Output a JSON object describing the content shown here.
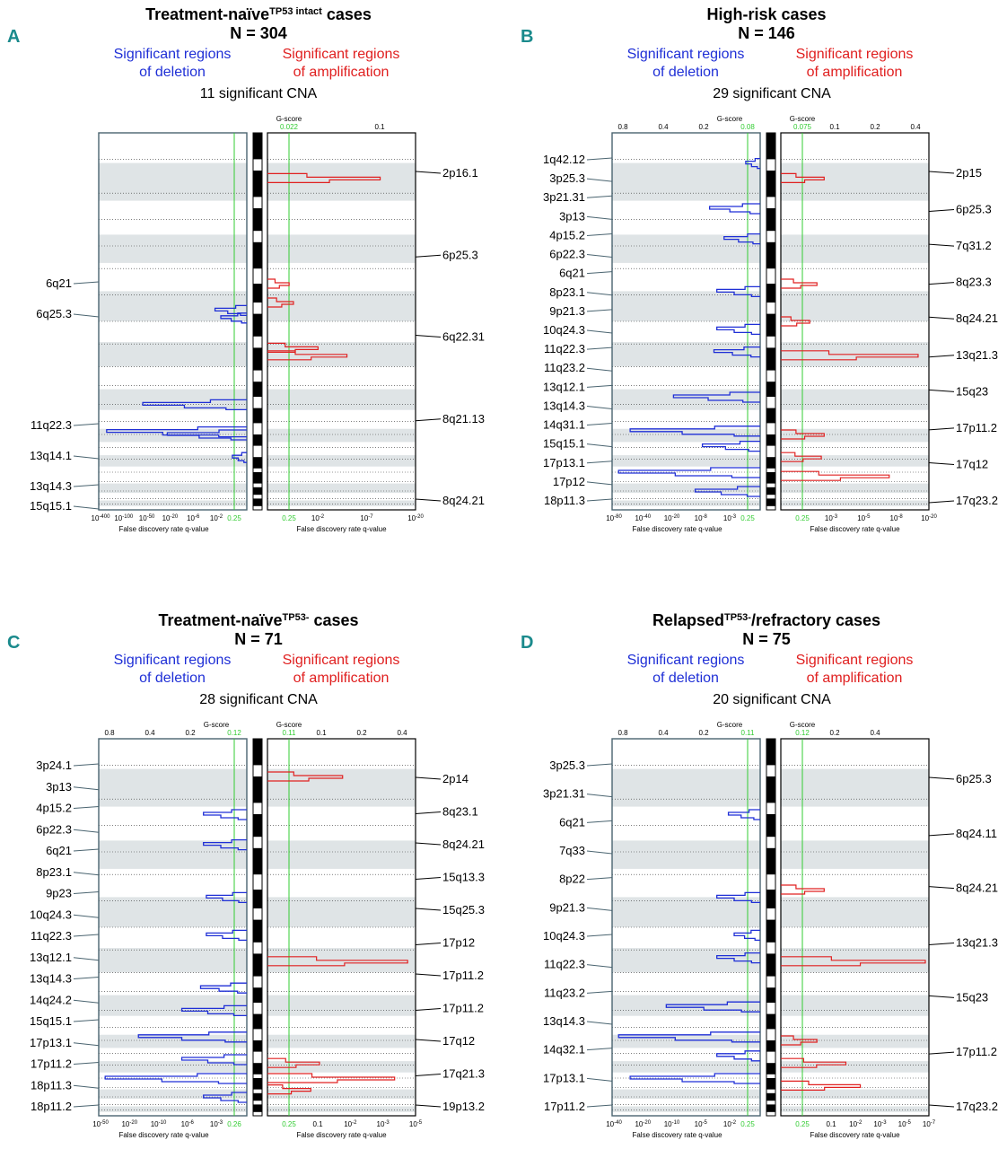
{
  "figure": {
    "colors": {
      "deletion": "#1f2fd6",
      "amplification": "#e02020",
      "threshold": "#33cc33",
      "panel_letter": "#1a8a8c",
      "band": "#dfe4e6"
    },
    "legend": {
      "del_line1": "Significant regions",
      "del_line2": "of deletion",
      "amp_line1": "Significant regions",
      "amp_line2": "of amplification"
    },
    "axis_labels": {
      "gscore": "G-score",
      "qvalue": "False discovery rate q-value"
    }
  },
  "chart_data": [
    {
      "type": "bar",
      "panel": "A",
      "title_main": "Treatment-naïve",
      "title_sup": "TP53 intact",
      "title_tail": " cases",
      "n_label": "N = 304",
      "cna_label": "11 significant CNA",
      "del_gscore_ticks": [],
      "del_gscore_threshold": "",
      "amp_gscore_ticks": [
        "0.1"
      ],
      "amp_gscore_threshold": "0.022",
      "del_q_ticks": [
        "10-400",
        "10-100",
        "10-50",
        "10-20",
        "10-6",
        "10-2"
      ],
      "del_q_threshold": "0.25",
      "amp_q_ticks": [
        "10-2",
        "10-7",
        "10-20"
      ],
      "amp_q_threshold": "0.25",
      "del_labels": [
        "6q21",
        "6q25.3",
        "11q22.3",
        "13q14.1",
        "13q14.3",
        "15q15.1"
      ],
      "amp_labels": [
        "2p16.1",
        "6p25.3",
        "6q22.31",
        "8q21.13",
        "8q24.21"
      ],
      "deletions": [
        {
          "region": "6q21",
          "pos": 0.47,
          "strength": 0.22
        },
        {
          "region": "6q25.3",
          "pos": 0.49,
          "strength": 0.18
        },
        {
          "region": "11q22.3",
          "pos": 0.72,
          "strength": 0.72
        },
        {
          "region": "13q14.1",
          "pos": 0.792,
          "strength": 0.97
        },
        {
          "region": "13q14.3",
          "pos": 0.8,
          "strength": 0.55
        },
        {
          "region": "15q15.1",
          "pos": 0.86,
          "strength": 0.1
        }
      ],
      "amplifications": [
        {
          "region": "2p16.1",
          "pos": 0.12,
          "strength": 0.78
        },
        {
          "region": "6p25.3",
          "pos": 0.4,
          "strength": 0.15
        },
        {
          "region": "6q22.31",
          "pos": 0.45,
          "strength": 0.18
        },
        {
          "region": "8q21.13",
          "pos": 0.57,
          "strength": 0.35
        },
        {
          "region": "8q24.21",
          "pos": 0.59,
          "strength": 0.55
        }
      ]
    },
    {
      "type": "bar",
      "panel": "B",
      "title_main": "High-risk cases",
      "title_sup": "",
      "title_tail": "",
      "n_label": "N = 146",
      "cna_label": "29 significant CNA",
      "del_gscore_ticks": [
        "0.8",
        "0.4",
        "0.2"
      ],
      "del_gscore_threshold": "0.08",
      "amp_gscore_ticks": [
        "0.1",
        "0.2",
        "0.4"
      ],
      "amp_gscore_threshold": "0.075",
      "del_q_ticks": [
        "10-80",
        "10-40",
        "10-20",
        "10-8",
        "10-3"
      ],
      "del_q_threshold": "0.25",
      "amp_q_ticks": [
        "10-3",
        "10-5",
        "10-8",
        "10-20"
      ],
      "amp_q_threshold": "0.25",
      "del_labels": [
        "1q42.12",
        "3p25.3",
        "3p21.31",
        "3p13",
        "4p15.2",
        "6p22.3",
        "6q21",
        "8p23.1",
        "9p21.3",
        "10q24.3",
        "11q22.3",
        "11q23.2",
        "13q12.1",
        "13q14.3",
        "14q31.1",
        "15q15.1",
        "17p13.1",
        "17p12",
        "18p11.3"
      ],
      "amp_labels": [
        "2p15",
        "6p25.3",
        "7q31.2",
        "8q23.3",
        "8q24.21",
        "13q21.3",
        "15q23",
        "17p11.2",
        "17q12",
        "17q23.2"
      ],
      "deletions": [
        {
          "region": "1q42.12",
          "pos": 0.08,
          "strength": 0.1
        },
        {
          "region": "3p21.31",
          "pos": 0.2,
          "strength": 0.35
        },
        {
          "region": "4p15.2",
          "pos": 0.28,
          "strength": 0.25
        },
        {
          "region": "6q21",
          "pos": 0.42,
          "strength": 0.3
        },
        {
          "region": "8p23.1",
          "pos": 0.52,
          "strength": 0.3
        },
        {
          "region": "9p21.3",
          "pos": 0.58,
          "strength": 0.32
        },
        {
          "region": "11q23.2",
          "pos": 0.7,
          "strength": 0.6
        },
        {
          "region": "13q14.3",
          "pos": 0.79,
          "strength": 0.9
        },
        {
          "region": "14q31.1",
          "pos": 0.83,
          "strength": 0.4
        },
        {
          "region": "17p13.1",
          "pos": 0.9,
          "strength": 0.98
        },
        {
          "region": "18p11.3",
          "pos": 0.95,
          "strength": 0.45
        }
      ],
      "amplifications": [
        {
          "region": "2p15",
          "pos": 0.12,
          "strength": 0.3
        },
        {
          "region": "6p25.3",
          "pos": 0.4,
          "strength": 0.25
        },
        {
          "region": "7q31.2",
          "pos": 0.5,
          "strength": 0.2
        },
        {
          "region": "8q24.21",
          "pos": 0.59,
          "strength": 0.95
        },
        {
          "region": "13q21.3",
          "pos": 0.8,
          "strength": 0.3
        },
        {
          "region": "15q23",
          "pos": 0.86,
          "strength": 0.28
        },
        {
          "region": "17q12",
          "pos": 0.91,
          "strength": 0.75
        }
      ]
    },
    {
      "type": "bar",
      "panel": "C",
      "title_main": "Treatment-naïve",
      "title_sup": "TP53-",
      "title_tail": " cases",
      "n_label": "N = 71",
      "cna_label": "28 significant CNA",
      "del_gscore_ticks": [
        "0.8",
        "0.4",
        "0.2"
      ],
      "del_gscore_threshold": "0.12",
      "amp_gscore_ticks": [
        "0.1",
        "0.2",
        "0.4"
      ],
      "amp_gscore_threshold": "0.11",
      "del_q_ticks": [
        "10-50",
        "10-20",
        "10-10",
        "10-6",
        "10-3"
      ],
      "del_q_threshold": "0.26",
      "amp_q_ticks": [
        "0.1",
        "10-2",
        "10-3",
        "10-5"
      ],
      "amp_q_threshold": "0.25",
      "del_labels": [
        "3p24.1",
        "3p13",
        "4p15.2",
        "6p22.3",
        "6q21",
        "8p23.1",
        "9p23",
        "10q24.3",
        "11q22.3",
        "13q12.1",
        "13q14.3",
        "14q24.2",
        "15q15.1",
        "17p13.1",
        "17p11.2",
        "18p11.3",
        "18p11.2"
      ],
      "amp_labels": [
        "2p14",
        "8q23.1",
        "8q24.21",
        "15q13.3",
        "15q25.3",
        "17p12",
        "17p11.2",
        "17p11.2",
        "17q12",
        "17q21.3",
        "19p13.2"
      ],
      "deletions": [
        {
          "region": "3p24.1",
          "pos": 0.2,
          "strength": 0.3
        },
        {
          "region": "4p15.2",
          "pos": 0.28,
          "strength": 0.3
        },
        {
          "region": "6q21",
          "pos": 0.42,
          "strength": 0.28
        },
        {
          "region": "8p23.1",
          "pos": 0.52,
          "strength": 0.28
        },
        {
          "region": "10q24.3",
          "pos": 0.66,
          "strength": 0.32
        },
        {
          "region": "11q22.3",
          "pos": 0.72,
          "strength": 0.45
        },
        {
          "region": "13q14.3",
          "pos": 0.79,
          "strength": 0.75
        },
        {
          "region": "15q15.1",
          "pos": 0.85,
          "strength": 0.45
        },
        {
          "region": "17p13.1",
          "pos": 0.9,
          "strength": 0.98
        },
        {
          "region": "18p11.2",
          "pos": 0.95,
          "strength": 0.3
        }
      ],
      "amplifications": [
        {
          "region": "2p14",
          "pos": 0.1,
          "strength": 0.52
        },
        {
          "region": "8q24.21",
          "pos": 0.59,
          "strength": 0.97
        },
        {
          "region": "15q25.3",
          "pos": 0.86,
          "strength": 0.36
        },
        {
          "region": "17p11.2",
          "pos": 0.9,
          "strength": 0.88
        },
        {
          "region": "17q21.3",
          "pos": 0.93,
          "strength": 0.3
        }
      ]
    },
    {
      "type": "bar",
      "panel": "D",
      "title_main": "Relapsed",
      "title_sup": "TP53-",
      "title_tail": "/refractory cases",
      "n_label": "N = 75",
      "cna_label": "20 significant CNA",
      "del_gscore_ticks": [
        "0.8",
        "0.4",
        "0.2"
      ],
      "del_gscore_threshold": "0.11",
      "amp_gscore_ticks": [
        "0.2",
        "0.4"
      ],
      "amp_gscore_threshold": "0.12",
      "del_q_ticks": [
        "10-40",
        "10-20",
        "10-10",
        "10-5",
        "10-2"
      ],
      "del_q_threshold": "0.25",
      "amp_q_ticks": [
        "0.1",
        "10-2",
        "10-3",
        "10-5",
        "10-7"
      ],
      "amp_q_threshold": "0.25",
      "del_labels": [
        "3p25.3",
        "3p21.31",
        "6q21",
        "7q33",
        "8p22",
        "9p21.3",
        "10q24.3",
        "11q22.3",
        "11q23.2",
        "13q14.3",
        "14q32.1",
        "17p13.1",
        "17p11.2"
      ],
      "amp_labels": [
        "6p25.3",
        "8q24.11",
        "8q24.21",
        "13q21.3",
        "15q23",
        "17p11.2",
        "17q23.2"
      ],
      "deletions": [
        {
          "region": "3p21.31",
          "pos": 0.2,
          "strength": 0.22
        },
        {
          "region": "6q21",
          "pos": 0.42,
          "strength": 0.3
        },
        {
          "region": "8p22",
          "pos": 0.52,
          "strength": 0.18
        },
        {
          "region": "9p21.3",
          "pos": 0.58,
          "strength": 0.3
        },
        {
          "region": "11q23.2",
          "pos": 0.71,
          "strength": 0.65
        },
        {
          "region": "13q14.3",
          "pos": 0.79,
          "strength": 0.98
        },
        {
          "region": "14q32.1",
          "pos": 0.84,
          "strength": 0.3
        },
        {
          "region": "17p13.1",
          "pos": 0.9,
          "strength": 0.9
        }
      ],
      "amplifications": [
        {
          "region": "6p25.3",
          "pos": 0.4,
          "strength": 0.3
        },
        {
          "region": "8q24.21",
          "pos": 0.59,
          "strength": 1.0
        },
        {
          "region": "13q21.3",
          "pos": 0.8,
          "strength": 0.25
        },
        {
          "region": "15q23",
          "pos": 0.86,
          "strength": 0.45
        },
        {
          "region": "17q23.2",
          "pos": 0.92,
          "strength": 0.55
        }
      ]
    }
  ]
}
